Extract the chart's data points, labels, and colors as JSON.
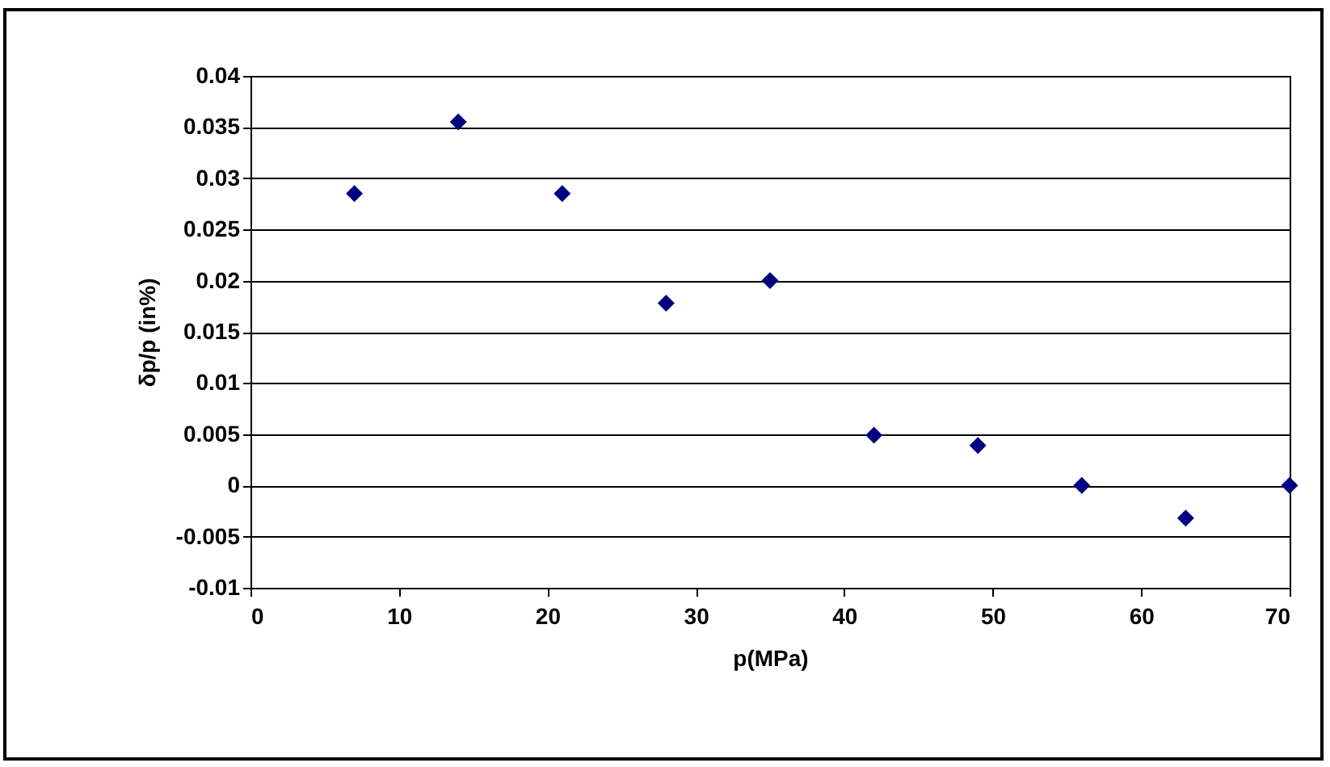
{
  "chart_data": {
    "type": "scatter",
    "xlabel": "p(MPa)",
    "ylabel": "δp/p (in%)",
    "x": [
      7,
      14,
      21,
      28,
      35,
      42,
      49,
      56,
      63,
      70
    ],
    "series": [
      {
        "color": "#000080",
        "values": [
          0.0285,
          0.0355,
          0.0285,
          0.0178,
          0.02,
          0.0049,
          0.0039,
          0,
          -0.0032,
          0
        ]
      }
    ],
    "xlim": [
      0,
      70
    ],
    "xticks": [
      0,
      10,
      20,
      30,
      40,
      50,
      60,
      70
    ],
    "ylim": [
      -0.01,
      0.04
    ],
    "yticks": [
      -0.01,
      -0.005,
      0,
      0.005,
      0.01,
      0.015,
      0.02,
      0.025,
      0.03,
      0.035,
      0.04
    ],
    "grid": "y",
    "marker": "diamond",
    "legend": false
  }
}
